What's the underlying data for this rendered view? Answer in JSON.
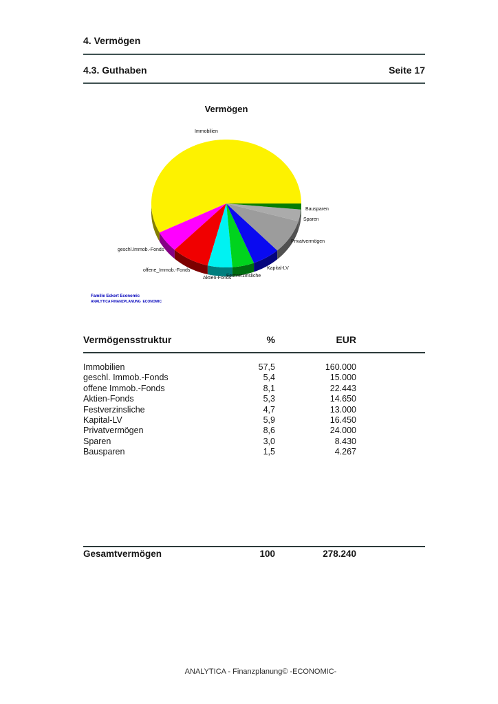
{
  "header": {
    "section_title": "4. Vermögen",
    "subsection_title": "4.3. Guthaben",
    "page_number": "Seite 17"
  },
  "chart_data": {
    "type": "pie",
    "title": "Vermögen",
    "legend_position": "around-slices",
    "start_angle_deg": 0,
    "direction": "counterclockwise",
    "style": "3d",
    "branding_line1": "Familie Eckert Economic",
    "branding_line2": "ANALYTICA FINANZPLANUNG  ECONOMIC",
    "slices": [
      {
        "label": "Immobilien",
        "pct": 57.5,
        "eur": 160000,
        "color": "#fdf200"
      },
      {
        "label": "geschl.Immob.-Fonds",
        "pct": 5.4,
        "eur": 15000,
        "color": "#ff00ff"
      },
      {
        "label": "offene_Immob.-Fonds",
        "pct": 8.1,
        "eur": 22443,
        "color": "#f00000"
      },
      {
        "label": "Aktien-Fonds",
        "pct": 5.3,
        "eur": 14650,
        "color": "#00f2f2"
      },
      {
        "label": "Festverzinsliche",
        "pct": 4.7,
        "eur": 13000,
        "color": "#00d41e"
      },
      {
        "label": "Kapital-LV",
        "pct": 5.9,
        "eur": 16450,
        "color": "#0a0af0"
      },
      {
        "label": "Privatvermögen",
        "pct": 8.6,
        "eur": 24000,
        "color": "#9c9c9c"
      },
      {
        "label": "Sparen",
        "pct": 3.0,
        "eur": 8430,
        "color": "#ababab"
      },
      {
        "label": "Bausparen",
        "pct": 1.5,
        "eur": 4267,
        "color": "#067c06"
      }
    ]
  },
  "table": {
    "title": "Vermögensstruktur",
    "col_pct": "%",
    "col_eur": "EUR",
    "rows": [
      {
        "name": "Immobilien",
        "pct": "57,5",
        "eur": "160.000"
      },
      {
        "name": "geschl. Immob.-Fonds",
        "pct": "5,4",
        "eur": "15.000"
      },
      {
        "name": "offene Immob.-Fonds",
        "pct": "8,1",
        "eur": "22.443"
      },
      {
        "name": "Aktien-Fonds",
        "pct": "5,3",
        "eur": "14.650"
      },
      {
        "name": "Festverzinsliche",
        "pct": "4,7",
        "eur": "13.000"
      },
      {
        "name": "Kapital-LV",
        "pct": "5,9",
        "eur": "16.450"
      },
      {
        "name": "Privatvermögen",
        "pct": "8,6",
        "eur": "24.000"
      },
      {
        "name": "Sparen",
        "pct": "3,0",
        "eur": "8.430"
      },
      {
        "name": "Bausparen",
        "pct": "1,5",
        "eur": "4.267"
      }
    ],
    "total": {
      "name": "Gesamtvermögen",
      "pct": "100",
      "eur": "278.240"
    }
  },
  "footer": {
    "text": "ANALYTICA - Finanzplanung© -ECONOMIC-"
  }
}
